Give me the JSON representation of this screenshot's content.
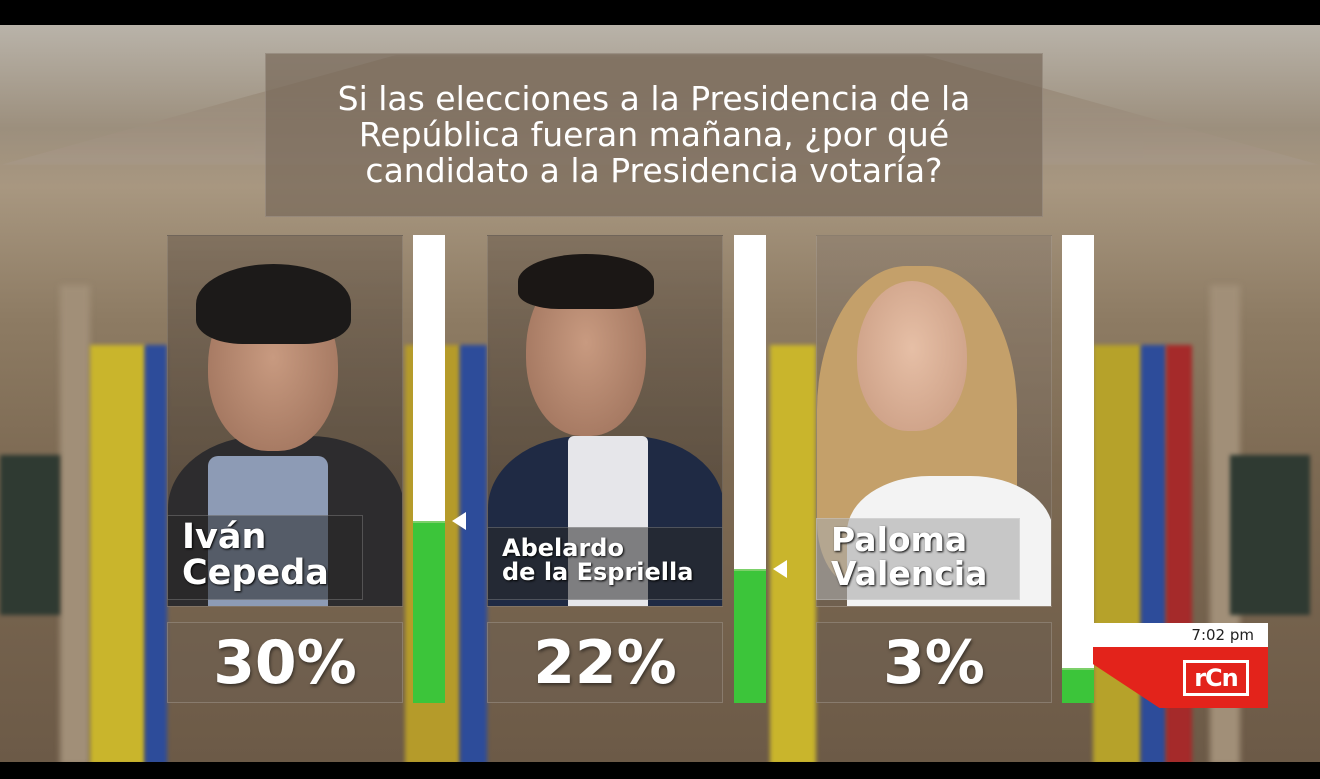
{
  "question": "Si las elecciones a la Presidencia de la República fueran mañana, ¿por qué candidato a la Presidencia votaría?",
  "broadcast": {
    "time": "7:02 pm",
    "logo": "RCN",
    "logo_color": "#e3231b"
  },
  "colors": {
    "bar_fill": "#3cc53a",
    "bar_track": "#ffffff"
  },
  "candidates": [
    {
      "name_line1": "Iván",
      "name_line2": "Cepeda",
      "percent_label": "30%"
    },
    {
      "name_line1": "Abelardo",
      "name_line2": "de la Espriella",
      "percent_label": "22%"
    },
    {
      "name_line1": "Paloma",
      "name_line2": "Valencia",
      "percent_label": "3%"
    }
  ],
  "chart_data": {
    "type": "bar",
    "title": "Si las elecciones a la Presidencia de la República fueran mañana, ¿por qué candidato a la Presidencia votaría?",
    "categories": [
      "Iván Cepeda",
      "Abelardo de la Espriella",
      "Paloma Valencia"
    ],
    "values": [
      30,
      22,
      3
    ],
    "unit": "%",
    "orientation": "vertical"
  }
}
